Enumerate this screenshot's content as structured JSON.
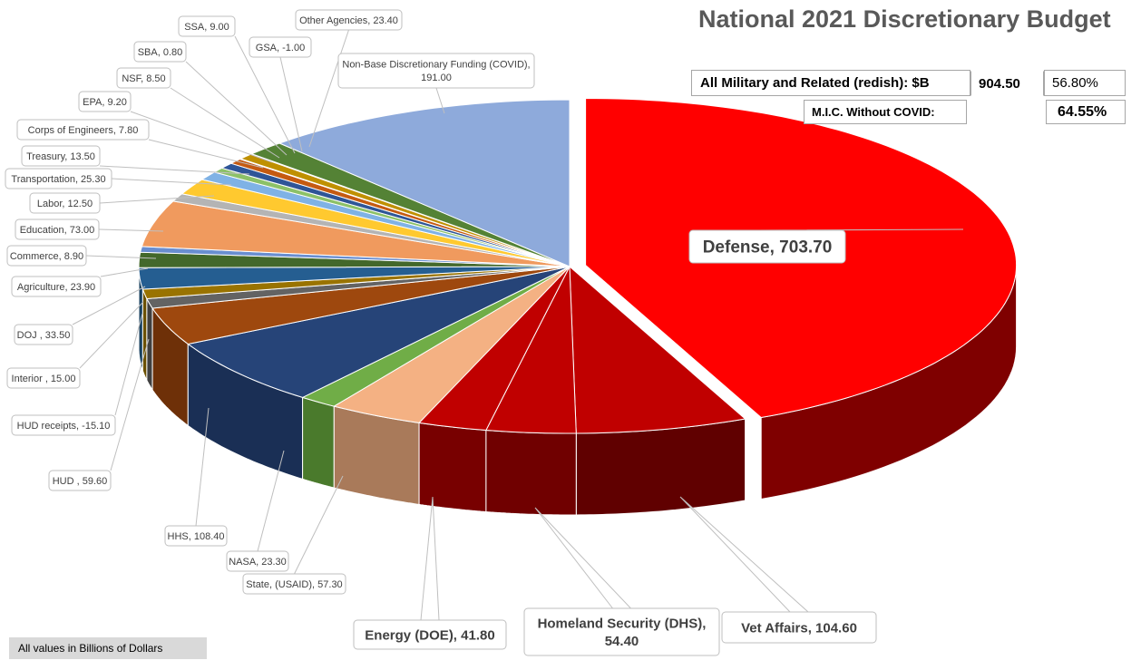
{
  "title": "National 2021 Discretionary Budget",
  "summary": {
    "military_label": "All Military and Related (redish):  $B",
    "military_value": "904.50",
    "military_percent": "56.80%",
    "mic_label": "M.I.C.  Without COVID:",
    "mic_percent": "64.55%"
  },
  "footnote": "All values in Billions of Dollars",
  "chart_data": {
    "type": "pie",
    "style": "3d-exploded",
    "title": "National 2021 Discretionary Budget",
    "unit": "Billions of Dollars",
    "slices": [
      {
        "name": "Defense",
        "value": 703.7,
        "label": "Defense, 703.70",
        "color": "#ff0000",
        "side": "#7f0000"
      },
      {
        "name": "Vet Affairs",
        "value": 104.6,
        "label": "Vet Affairs, 104.60",
        "color": "#c00000",
        "side": "#600000"
      },
      {
        "name": "Homeland Security (DHS)",
        "value": 54.4,
        "label": "Homeland Security (DHS), 54.40",
        "color": "#c00000",
        "side": "#700000"
      },
      {
        "name": "Energy (DOE)",
        "value": 41.8,
        "label": "Energy (DOE), 41.80",
        "color": "#c00000",
        "side": "#780000"
      },
      {
        "name": "State, (USAID)",
        "value": 57.3,
        "label": "State, (USAID), 57.30",
        "color": "#f4b183",
        "side": "#a97a5a"
      },
      {
        "name": "NASA",
        "value": 23.3,
        "label": "NASA, 23.30",
        "color": "#70ad47",
        "side": "#4a7a2c"
      },
      {
        "name": "HHS",
        "value": 108.4,
        "label": "HHS, 108.40",
        "color": "#264478",
        "side": "#1a2f55"
      },
      {
        "name": "HUD",
        "value": 59.6,
        "label": "HUD , 59.60",
        "color": "#9e480e",
        "side": "#6e3008"
      },
      {
        "name": "HUD receipts",
        "value": -15.1,
        "label": "HUD receipts, -15.10",
        "color": "#636363",
        "side": "#404040"
      },
      {
        "name": "Interior",
        "value": 15.0,
        "label": "Interior , 15.00",
        "color": "#997300",
        "side": "#6b5000"
      },
      {
        "name": "DOJ",
        "value": 33.5,
        "label": "DOJ , 33.50",
        "color": "#255e91",
        "side": "#18405f"
      },
      {
        "name": "Agriculture",
        "value": 23.9,
        "label": "Agriculture, 23.90",
        "color": "#43682b",
        "side": "#2d461d"
      },
      {
        "name": "Commerce",
        "value": 8.9,
        "label": "Commerce, 8.90",
        "color": "#698ed0",
        "side": "#4a6496"
      },
      {
        "name": "Education",
        "value": 73.0,
        "label": "Education, 73.00",
        "color": "#f09a5e",
        "side": "#a86c42"
      },
      {
        "name": "Labor",
        "value": 12.5,
        "label": "Labor, 12.50",
        "color": "#b4b4b4",
        "side": "#7e7e7e"
      },
      {
        "name": "Transportation",
        "value": 25.3,
        "label": "Transportation, 25.30",
        "color": "#ffc92f",
        "side": "#b38d20"
      },
      {
        "name": "Treasury",
        "value": 13.5,
        "label": "Treasury, 13.50",
        "color": "#7fb2e5",
        "side": "#5a7ea2"
      },
      {
        "name": "Corps of Engineers",
        "value": 7.8,
        "label": "Corps of Engineers, 7.80",
        "color": "#8cc168",
        "side": "#618749"
      },
      {
        "name": "EPA",
        "value": 9.2,
        "label": "EPA, 9.20",
        "color": "#2e5597",
        "side": "#1f3a68"
      },
      {
        "name": "NSF",
        "value": 8.5,
        "label": "NSF, 8.50",
        "color": "#c55a11",
        "side": "#8a3f0c"
      },
      {
        "name": "SBA",
        "value": 0.8,
        "label": "SBA, 0.80",
        "color": "#7f7f7f",
        "side": "#595959"
      },
      {
        "name": "SSA",
        "value": 9.0,
        "label": "SSA, 9.00",
        "color": "#bf9000",
        "side": "#866500"
      },
      {
        "name": "GSA",
        "value": -1.0,
        "label": "GSA, -1.00",
        "color": "#335aa3",
        "side": "#233f72"
      },
      {
        "name": "Other Agencies",
        "value": 23.4,
        "label": "Other Agencies, 23.40",
        "color": "#548235",
        "side": "#3a5b25"
      },
      {
        "name": "Non-Base Discretionary Funding (COVID)",
        "value": 191.0,
        "label": "Non-Base Discretionary Funding (COVID), 191.00",
        "color": "#8eaadb",
        "side": "#637799"
      }
    ]
  }
}
